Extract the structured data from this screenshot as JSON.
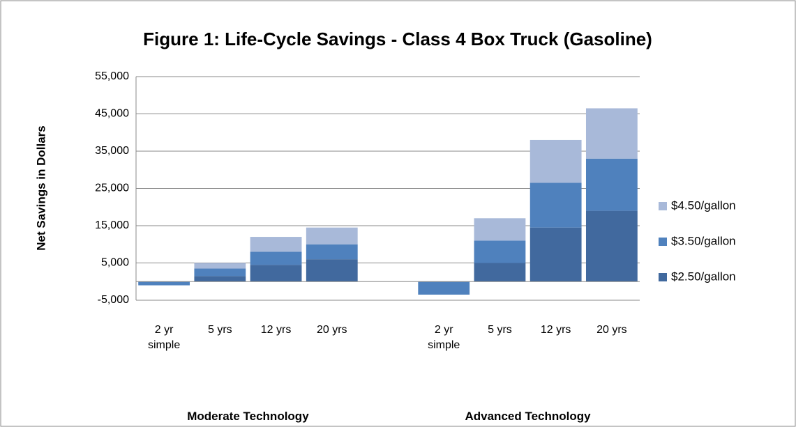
{
  "chart_data": {
    "type": "stacked_bar",
    "title": "Figure 1: Life-Cycle Savings - Class 4 Box Truck (Gasoline)",
    "y_label": "Net Savings in Dollars",
    "categories": [
      "2 yr simple",
      "5 yrs",
      "12 yrs",
      "20 yrs",
      null,
      "2 yr simple",
      "5 yrs",
      "12 yrs",
      "20 yrs"
    ],
    "groups": [
      {
        "name": "Moderate Technology",
        "span": [
          0,
          3
        ]
      },
      {
        "name": "Advanced Technology",
        "span": [
          5,
          8
        ]
      }
    ],
    "series": [
      {
        "name": "$2.50/gallon",
        "color": "#41699e",
        "values": [
          0,
          1500,
          4500,
          6000,
          null,
          0,
          5000,
          14500,
          19000
        ]
      },
      {
        "name": "$3.50/gallon",
        "color": "#4f81bd",
        "values": [
          -1000,
          2000,
          3500,
          4000,
          null,
          -3500,
          6000,
          12000,
          14000
        ]
      },
      {
        "name": "$4.50/gallon",
        "color": "#a8b9d9",
        "values": [
          0,
          1500,
          4000,
          4500,
          null,
          0,
          6000,
          11500,
          13500
        ]
      }
    ],
    "ylim": [
      -5000,
      55000
    ],
    "yticks": [
      {
        "value": -5000,
        "label": "-5,000"
      },
      {
        "value": 5000,
        "label": "5,000"
      },
      {
        "value": 15000,
        "label": "15,000"
      },
      {
        "value": 25000,
        "label": "25,000"
      },
      {
        "value": 35000,
        "label": "35,000"
      },
      {
        "value": 45000,
        "label": "45,000"
      },
      {
        "value": 55000,
        "label": "55,000"
      }
    ],
    "grid": true,
    "legend": "right"
  }
}
